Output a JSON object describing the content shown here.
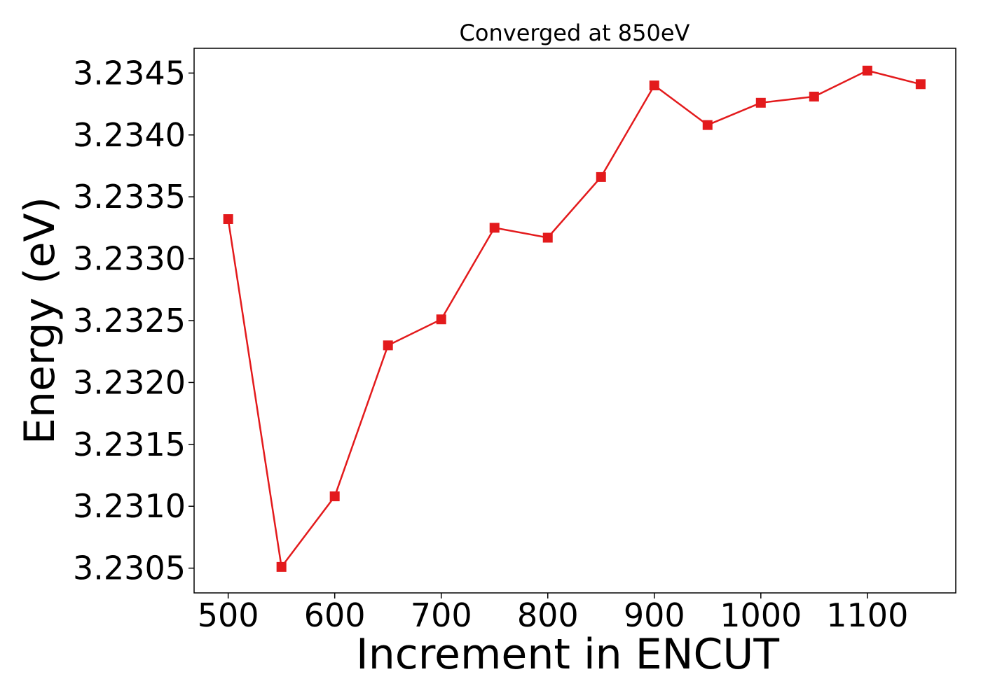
{
  "chart_data": {
    "type": "line",
    "title": "Converged at 850eV",
    "xlabel": "Increment in ENCUT",
    "ylabel": "Energy (eV)",
    "x": [
      500,
      550,
      600,
      650,
      700,
      750,
      800,
      850,
      900,
      950,
      1000,
      1050,
      1100,
      1150
    ],
    "series": [
      {
        "values": [
          3.23332,
          3.23051,
          3.23108,
          3.2323,
          3.23251,
          3.23325,
          3.23317,
          3.23366,
          3.2344,
          3.23408,
          3.23426,
          3.23431,
          3.23452,
          3.23441
        ],
        "color": "#e31a1c",
        "marker": "square"
      }
    ],
    "xlim": [
      468,
      1183
    ],
    "ylim": [
      3.2303,
      3.2347
    ],
    "xticks": [
      500,
      600,
      700,
      800,
      900,
      1000,
      1100
    ],
    "xtick_labels": [
      "500",
      "600",
      "700",
      "800",
      "900",
      "1000",
      "1100"
    ],
    "yticks": [
      3.2305,
      3.231,
      3.2315,
      3.232,
      3.2325,
      3.233,
      3.2335,
      3.234,
      3.2345
    ],
    "ytick_labels": [
      "3.2305",
      "3.2310",
      "3.2315",
      "3.2320",
      "3.2325",
      "3.2330",
      "3.2335",
      "3.2340",
      "3.2345"
    ],
    "grid": false,
    "legend": "none"
  }
}
